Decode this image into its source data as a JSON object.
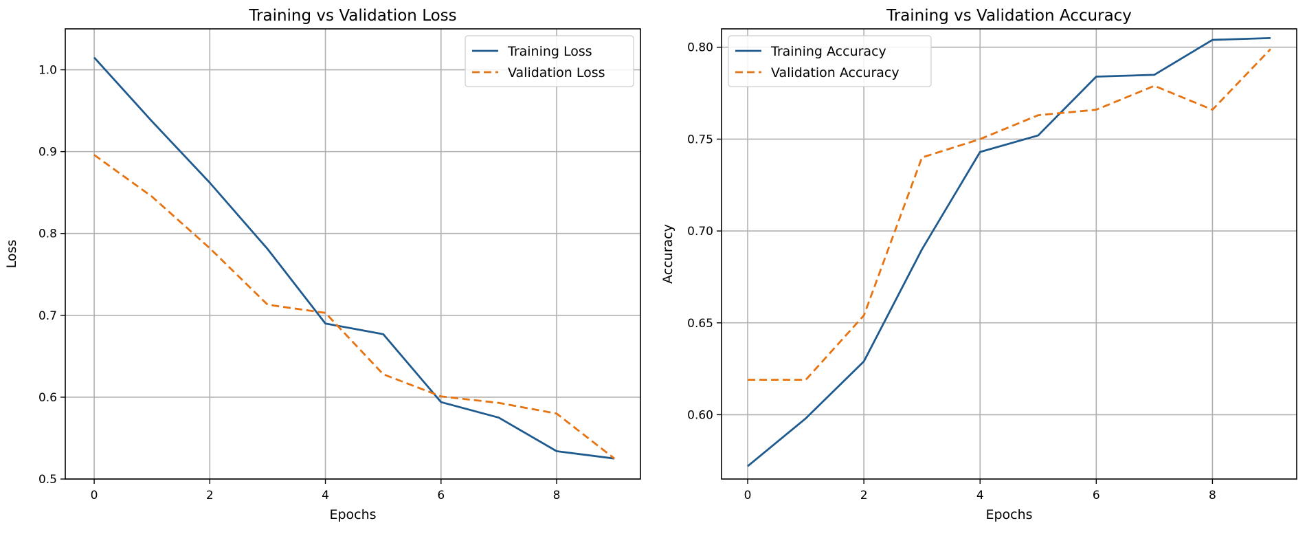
{
  "colors": {
    "training": "#1f5a8f",
    "validation": "#e67310",
    "grid": "#b0b0b0"
  },
  "chart_data": [
    {
      "type": "line",
      "title": "Training vs Validation Loss",
      "xlabel": "Epochs",
      "ylabel": "Loss",
      "x": [
        0,
        1,
        2,
        3,
        4,
        5,
        6,
        7,
        8,
        9
      ],
      "xlim": [
        -0.5,
        9.45
      ],
      "ylim": [
        0.5,
        1.05
      ],
      "xticks": [
        0,
        2,
        4,
        6,
        8
      ],
      "yticks": [
        0.5,
        0.6,
        0.7,
        0.8,
        0.9,
        1.0
      ],
      "yticklabels": [
        "0.5",
        "0.6",
        "0.7",
        "0.8",
        "0.9",
        "1.0"
      ],
      "grid": true,
      "legend": "top-right",
      "series": [
        {
          "name": "Training Loss",
          "style": "solid",
          "values": [
            1.015,
            0.937,
            0.862,
            0.781,
            0.69,
            0.677,
            0.594,
            0.575,
            0.534,
            0.525
          ]
        },
        {
          "name": "Validation Loss",
          "style": "dashed",
          "values": [
            0.896,
            0.845,
            0.782,
            0.713,
            0.703,
            0.628,
            0.601,
            0.593,
            0.58,
            0.525
          ]
        }
      ]
    },
    {
      "type": "line",
      "title": "Training vs Validation Accuracy",
      "xlabel": "Epochs",
      "ylabel": "Accuracy",
      "x": [
        0,
        1,
        2,
        3,
        4,
        5,
        6,
        7,
        8,
        9
      ],
      "xlim": [
        -0.45,
        9.45
      ],
      "ylim": [
        0.565,
        0.81
      ],
      "xticks": [
        0,
        2,
        4,
        6,
        8
      ],
      "yticks": [
        0.6,
        0.65,
        0.7,
        0.75,
        0.8
      ],
      "yticklabels": [
        "0.60",
        "0.65",
        "0.70",
        "0.75",
        "0.80"
      ],
      "grid": true,
      "legend": "top-left",
      "series": [
        {
          "name": "Training Accuracy",
          "style": "solid",
          "values": [
            0.572,
            0.598,
            0.629,
            0.69,
            0.743,
            0.752,
            0.784,
            0.785,
            0.804,
            0.805
          ]
        },
        {
          "name": "Validation Accuracy",
          "style": "dashed",
          "values": [
            0.619,
            0.619,
            0.654,
            0.74,
            0.75,
            0.763,
            0.766,
            0.779,
            0.766,
            0.799
          ]
        }
      ]
    }
  ]
}
